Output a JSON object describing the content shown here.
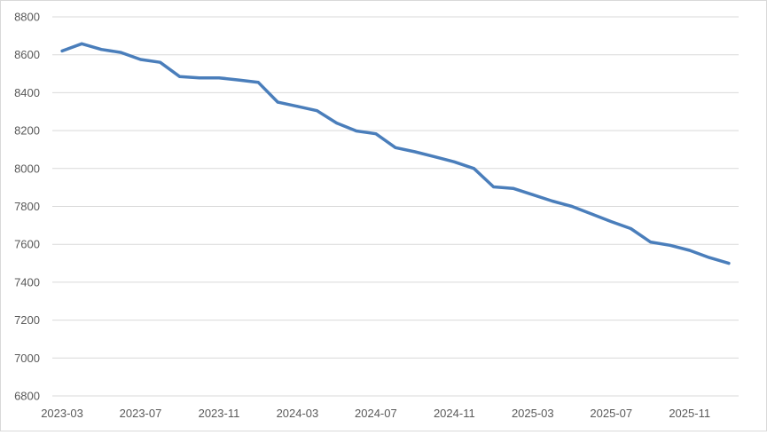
{
  "chart_data": {
    "type": "line",
    "title": "",
    "xlabel": "",
    "ylabel": "",
    "ylim": [
      6800,
      8800
    ],
    "yticks": [
      6800,
      7000,
      7200,
      7400,
      7600,
      7800,
      8000,
      8200,
      8400,
      8600,
      8800
    ],
    "grid": true,
    "legend": "none",
    "line_color": "#4a7ebb",
    "grid_color": "#d9d9d9",
    "x": [
      "2023-03",
      "2023-04",
      "2023-05",
      "2023-06",
      "2023-07",
      "2023-08",
      "2023-09",
      "2023-10",
      "2023-11",
      "2023-12",
      "2024-01",
      "2024-02",
      "2024-03",
      "2024-04",
      "2024-05",
      "2024-06",
      "2024-07",
      "2024-08",
      "2024-09",
      "2024-10",
      "2024-11",
      "2024-12",
      "2025-01",
      "2025-02",
      "2025-03",
      "2025-04",
      "2025-05",
      "2025-06",
      "2025-07",
      "2025-08",
      "2025-09",
      "2025-10",
      "2025-11",
      "2025-12",
      "2026-01"
    ],
    "xtick_labels": [
      "2023-03",
      "2023-07",
      "2023-11",
      "2024-03",
      "2024-07",
      "2024-11",
      "2025-03",
      "2025-07",
      "2025-11"
    ],
    "series": [
      {
        "values": [
          8620,
          8658,
          8628,
          8612,
          8575,
          8560,
          8485,
          8478,
          8478,
          8467,
          8455,
          8350,
          8328,
          8305,
          8240,
          8198,
          8183,
          8110,
          8088,
          8062,
          8035,
          8000,
          7903,
          7895,
          7862,
          7828,
          7800,
          7760,
          7720,
          7683,
          7612,
          7595,
          7568,
          7530,
          7500
        ]
      }
    ]
  }
}
